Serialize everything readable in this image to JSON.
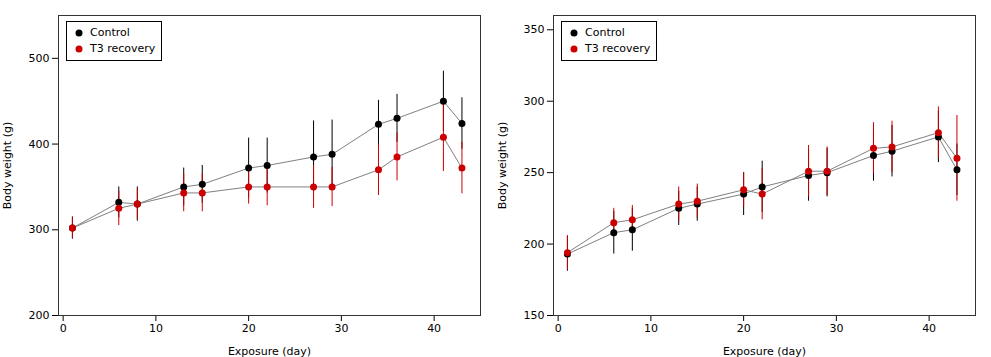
{
  "chart_data": [
    {
      "type": "line",
      "xlabel": "Exposure (day)",
      "ylabel": "Body weight (g)",
      "xlim": [
        -0.5,
        45
      ],
      "xticks": [
        0,
        10,
        20,
        30,
        40
      ],
      "ylim": [
        200,
        550
      ],
      "yticks": [
        200,
        300,
        400,
        500
      ],
      "legend": "upper left",
      "marker": "circle",
      "color": "#808080",
      "x": [
        1,
        6,
        8,
        13,
        15,
        20,
        22,
        27,
        29,
        34,
        36,
        41,
        43
      ],
      "series": [
        {
          "name": "Control",
          "color": "#000000",
          "values": [
            302,
            332,
            330,
            350,
            353,
            372,
            375,
            385,
            388,
            423,
            430,
            450,
            424
          ],
          "yerr": [
            13,
            18,
            20,
            22,
            22,
            35,
            32,
            42,
            40,
            28,
            28,
            35,
            30
          ]
        },
        {
          "name": "T3 recovery",
          "color": "#cc0000",
          "values": [
            302,
            325,
            330,
            343,
            343,
            350,
            350,
            350,
            350,
            370,
            385,
            408,
            372
          ],
          "yerr": [
            12,
            20,
            18,
            22,
            22,
            20,
            22,
            25,
            23,
            30,
            28,
            40,
            30
          ]
        }
      ]
    },
    {
      "type": "line",
      "xlabel": "Exposure (day)",
      "ylabel": "Body weight (g)",
      "xlim": [
        -0.5,
        45
      ],
      "xticks": [
        0,
        10,
        20,
        30,
        40
      ],
      "ylim": [
        150,
        360
      ],
      "yticks": [
        150,
        200,
        250,
        300,
        350
      ],
      "legend": "upper left",
      "marker": "circle",
      "color": "#808080",
      "x": [
        1,
        6,
        8,
        13,
        15,
        20,
        22,
        27,
        29,
        34,
        36,
        41,
        43
      ],
      "series": [
        {
          "name": "Control",
          "color": "#000000",
          "values": [
            193,
            208,
            210,
            225,
            228,
            235,
            240,
            248,
            250,
            262,
            265,
            275,
            252
          ],
          "yerr": [
            12,
            15,
            15,
            12,
            12,
            15,
            18,
            18,
            17,
            18,
            18,
            18,
            18
          ]
        },
        {
          "name": "T3 recovery",
          "color": "#cc0000",
          "values": [
            194,
            215,
            217,
            228,
            230,
            238,
            235,
            251,
            251,
            267,
            268,
            278,
            260
          ],
          "yerr": [
            12,
            10,
            10,
            12,
            12,
            12,
            18,
            18,
            17,
            18,
            18,
            18,
            30
          ]
        }
      ]
    }
  ]
}
